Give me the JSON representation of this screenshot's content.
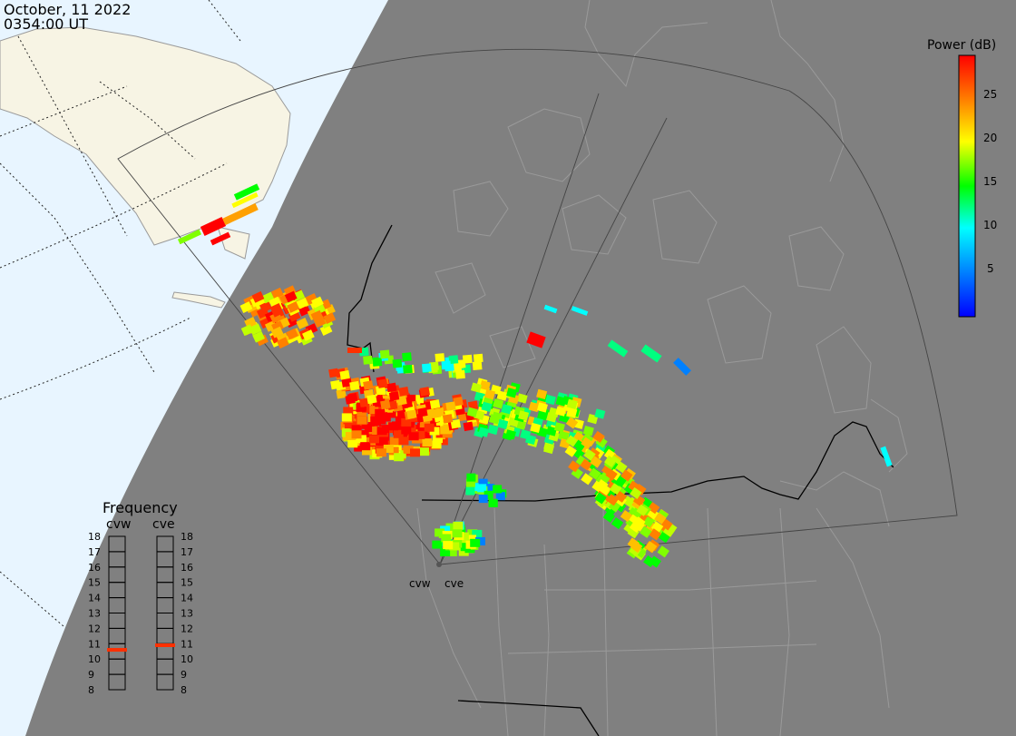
{
  "header": {
    "date": "October, 11 2022",
    "time": "0354:00 UT"
  },
  "colorbar": {
    "title": "Power (dB)",
    "ticks": [
      "25",
      "20",
      "15",
      "10",
      "5"
    ],
    "colors": [
      "#ff0000",
      "#ff8000",
      "#ffff00",
      "#80ff00",
      "#00ff00",
      "#00ffff",
      "#0080ff",
      "#0000ff"
    ]
  },
  "radars": {
    "west_label": "cvw",
    "east_label": "cve"
  },
  "frequency": {
    "title": "Frequency",
    "col_west": "cvw",
    "col_east": "cve",
    "ticks": [
      "18",
      "17",
      "16",
      "15",
      "14",
      "13",
      "12",
      "11",
      "10",
      "9",
      "8"
    ],
    "cvw_value_mhz": 10.6,
    "cve_value_mhz": 10.9
  },
  "colors": {
    "night": "#808080",
    "day_ocean": "#e8f5ff",
    "day_land": "#f7f4e4",
    "land_outline": "#9a9a9a",
    "strong": "#ff0000",
    "medium": "#ffff00",
    "weak": "#00ffff"
  }
}
